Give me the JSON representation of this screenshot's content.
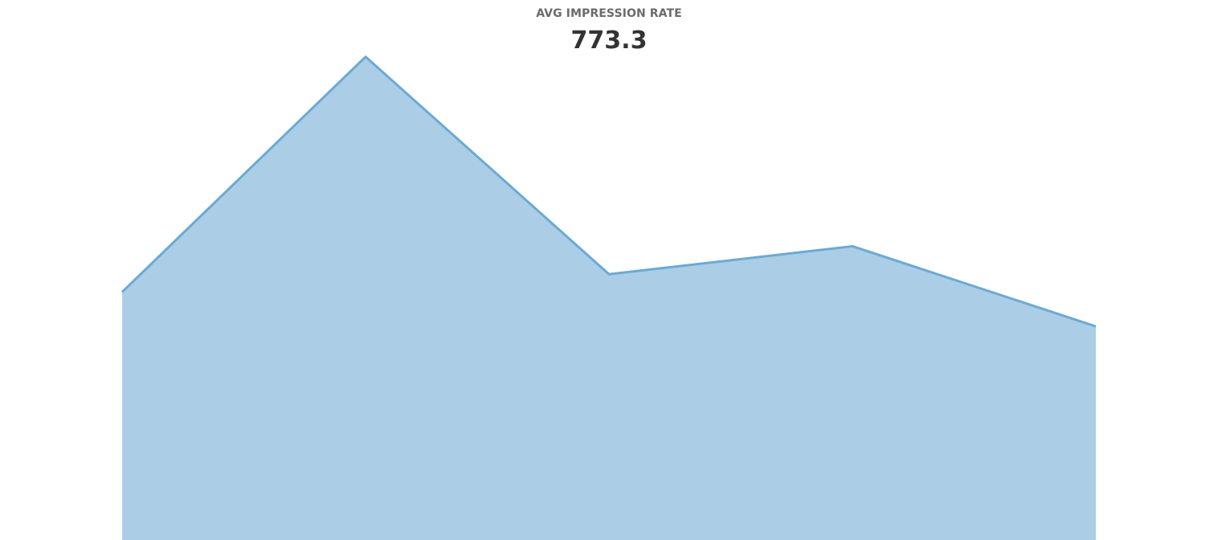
{
  "header": {
    "metric_label": "AVG IMPRESSION RATE",
    "metric_value": "773.3"
  },
  "colors": {
    "area_fill": "#abcde6",
    "line_stroke": "#6aaad6",
    "label": "#6b6b6b",
    "value": "#333333"
  },
  "chart_data": {
    "type": "area",
    "x": [
      1,
      2,
      3,
      4,
      5
    ],
    "values": [
      975,
      1900,
      1045,
      1155,
      840
    ],
    "ylim": [
      0,
      2000
    ],
    "grid": false,
    "axes_visible": false,
    "legend": "none"
  }
}
